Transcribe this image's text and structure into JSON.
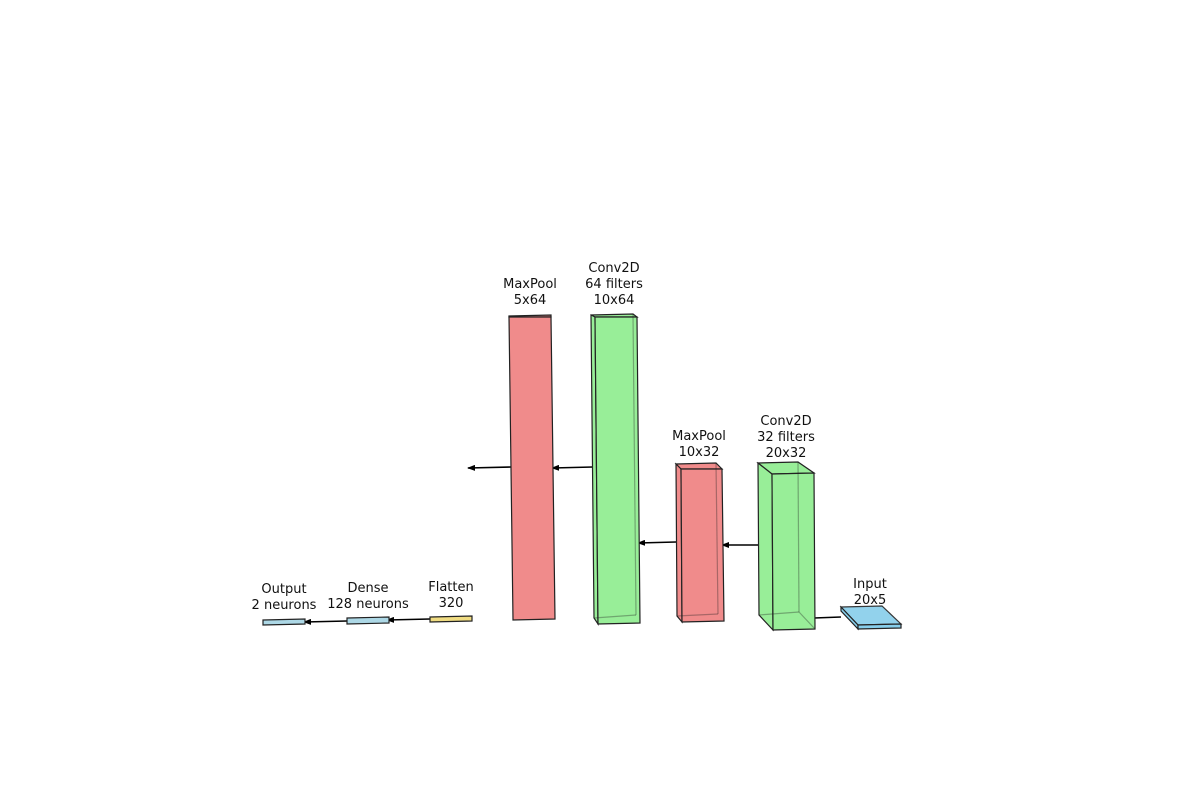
{
  "diagram": {
    "layers": [
      {
        "id": "input",
        "lines": [
          "Input",
          "20x5"
        ]
      },
      {
        "id": "conv2d-1",
        "lines": [
          "Conv2D",
          "32 filters",
          "20x32"
        ]
      },
      {
        "id": "maxpool-1",
        "lines": [
          "MaxPool",
          "10x32"
        ]
      },
      {
        "id": "conv2d-2",
        "lines": [
          "Conv2D",
          "64 filters",
          "10x64"
        ]
      },
      {
        "id": "maxpool-2",
        "lines": [
          "MaxPool",
          "5x64"
        ]
      },
      {
        "id": "flatten",
        "lines": [
          "Flatten",
          "320"
        ]
      },
      {
        "id": "dense",
        "lines": [
          "Dense",
          "128 neurons"
        ]
      },
      {
        "id": "output",
        "lines": [
          "Output",
          "2 neurons"
        ]
      }
    ],
    "colors": {
      "input": "#87ceeb",
      "conv": "#98ee98",
      "pool": "#f08b8b",
      "flatten": "#f0dc82",
      "dense": "#add8e6",
      "edge": "#222222"
    }
  }
}
